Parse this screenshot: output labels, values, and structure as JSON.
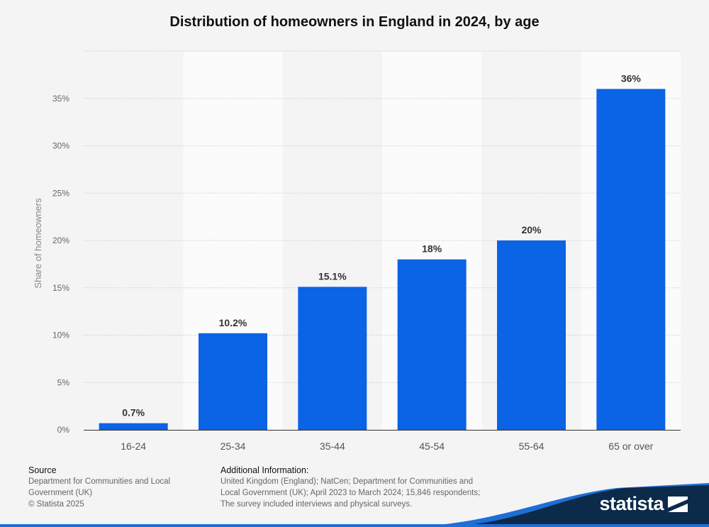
{
  "chart_data": {
    "type": "bar",
    "title": "Distribution of homeowners in England in 2024, by age",
    "xlabel": "",
    "ylabel": "Share of homeowners",
    "categories": [
      "16-24",
      "25-34",
      "35-44",
      "45-54",
      "55-64",
      "65 or over"
    ],
    "values": [
      0.7,
      10.2,
      15.1,
      18,
      20,
      36
    ],
    "value_labels": [
      "0.7%",
      "10.2%",
      "15.1%",
      "18%",
      "20%",
      "36%"
    ],
    "yticks": [
      0,
      5,
      10,
      15,
      20,
      25,
      30,
      35
    ],
    "ytick_labels": [
      "0%",
      "5%",
      "10%",
      "15%",
      "20%",
      "25%",
      "30%",
      "35%"
    ],
    "ylim": [
      0,
      40
    ],
    "grid": true,
    "legend": "none",
    "bar_color": "#0b63e5"
  },
  "footer": {
    "source_heading": "Source",
    "source_lines": [
      "Department for Communities and Local",
      "Government (UK)",
      "© Statista 2025"
    ],
    "info_heading": "Additional Information:",
    "info_lines": [
      "United Kingdom (England); NatCen; Department for Communities and",
      "Local Government (UK); April 2023 to March 2024; 15,846 respondents;",
      "The survey included interviews and physical surveys."
    ]
  },
  "brand": {
    "name": "statista",
    "band_color": "#0c2a4a",
    "accent_color": "#1d6fd8",
    "logo_icon": "statista-logo-icon"
  }
}
